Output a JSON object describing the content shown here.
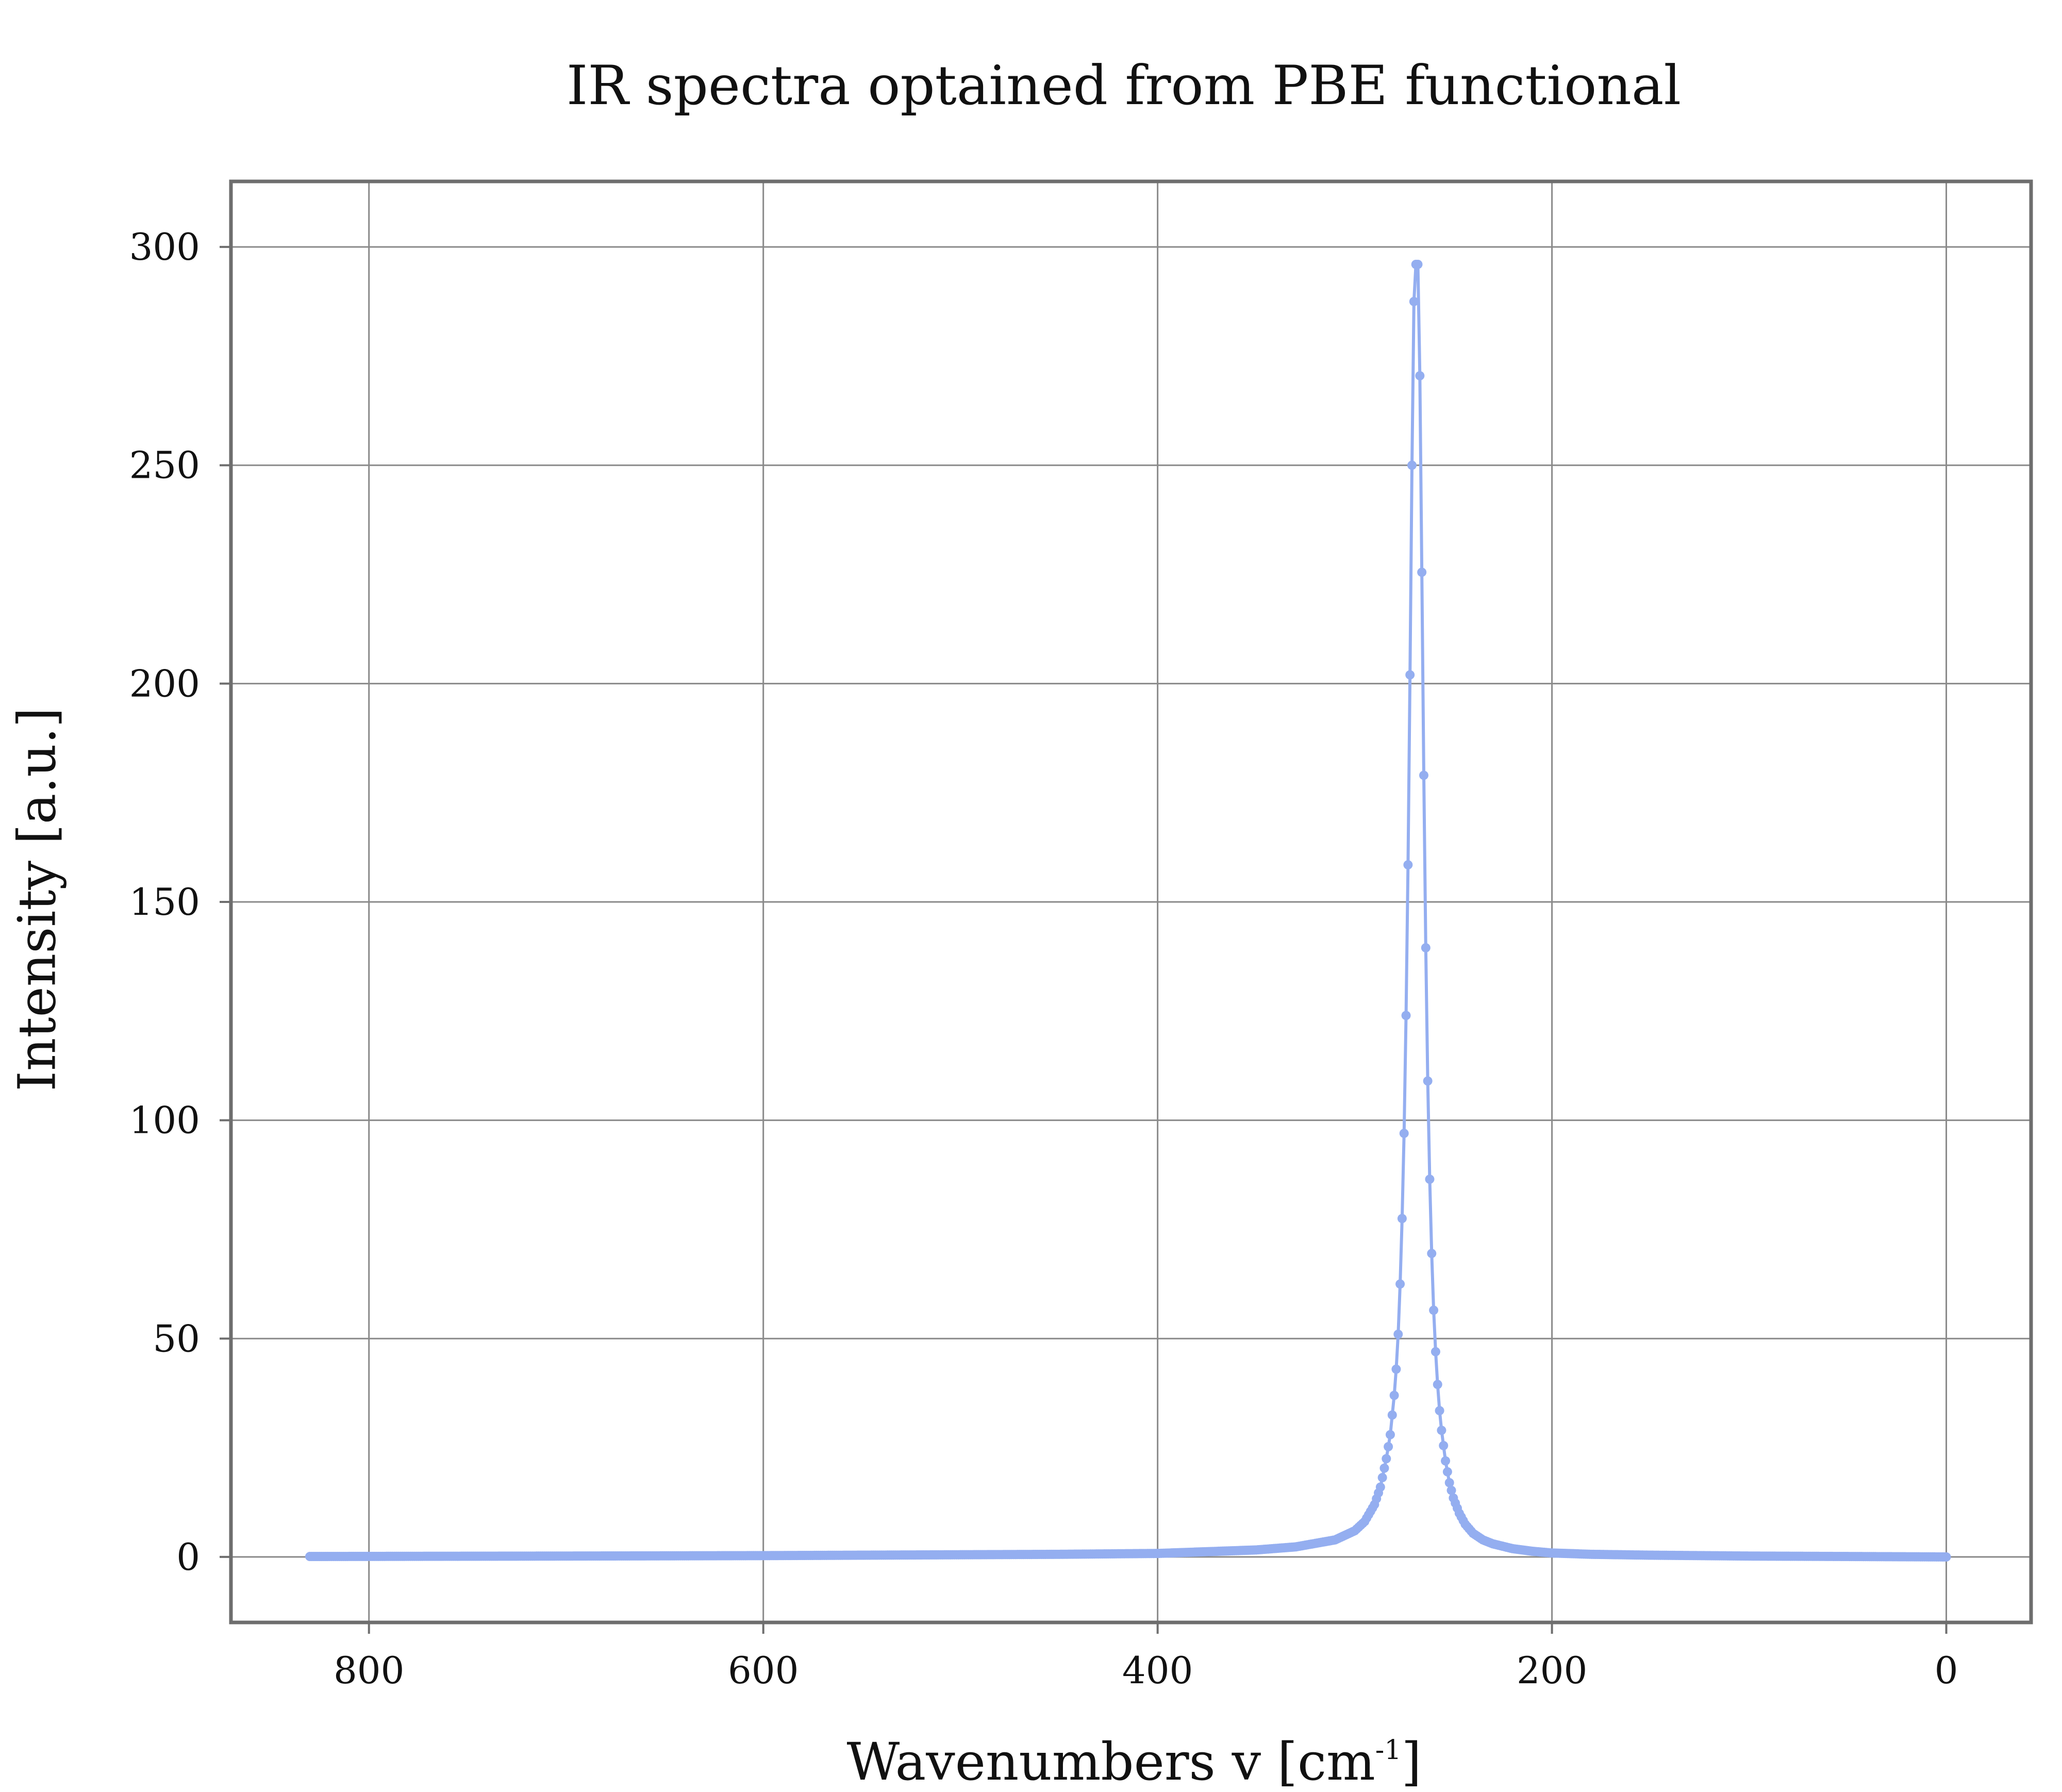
{
  "chart_data": {
    "type": "line",
    "title": "IR spectra optained from PBE functional",
    "xlabel": "Wavenumbers v [cm",
    "xlabel_sup": "-1",
    "xlabel_close": "]",
    "ylabel": "Intensity [a.u.]",
    "xlim": [
      870,
      -43
    ],
    "ylim": [
      -15,
      315
    ],
    "x_reversed": true,
    "grid": true,
    "legend": "none",
    "xticks": [
      800,
      600,
      400,
      200,
      0
    ],
    "yticks": [
      0,
      50,
      100,
      150,
      200,
      250,
      300
    ],
    "series": [
      {
        "color": "#94aef0",
        "marker": "dot",
        "x_range": [
          830,
          0
        ],
        "peak": {
          "x": 268,
          "y": 296
        },
        "x": [
          830,
          700,
          600,
          500,
          450,
          400,
          350,
          330,
          310,
          300,
          295,
          290,
          287,
          284,
          282,
          280,
          279,
          278,
          277,
          276,
          275,
          274,
          273,
          272,
          271,
          270,
          269,
          268,
          267,
          266,
          265,
          264,
          263,
          262,
          261,
          260,
          259,
          258,
          257,
          256,
          254,
          252,
          250,
          247,
          244,
          240,
          235,
          230,
          220,
          210,
          200,
          180,
          150,
          100,
          50,
          0
        ],
        "y": [
          0.1,
          0.2,
          0.3,
          0.5,
          0.6,
          0.8,
          1.6,
          2.3,
          3.9,
          6.0,
          8.1,
          12.0,
          16.0,
          22.5,
          28.0,
          37.0,
          43.0,
          51.0,
          62.5,
          77.5,
          97.0,
          124.0,
          158.5,
          202.0,
          250.0,
          287.5,
          296.0,
          296.0,
          270.5,
          225.5,
          179.0,
          139.5,
          109.0,
          86.5,
          69.5,
          56.5,
          47.0,
          39.5,
          33.5,
          29.0,
          22.0,
          17.0,
          13.5,
          10.0,
          7.5,
          5.4,
          3.9,
          3.0,
          1.9,
          1.3,
          0.9,
          0.6,
          0.4,
          0.2,
          0.1,
          0.0
        ]
      }
    ]
  }
}
